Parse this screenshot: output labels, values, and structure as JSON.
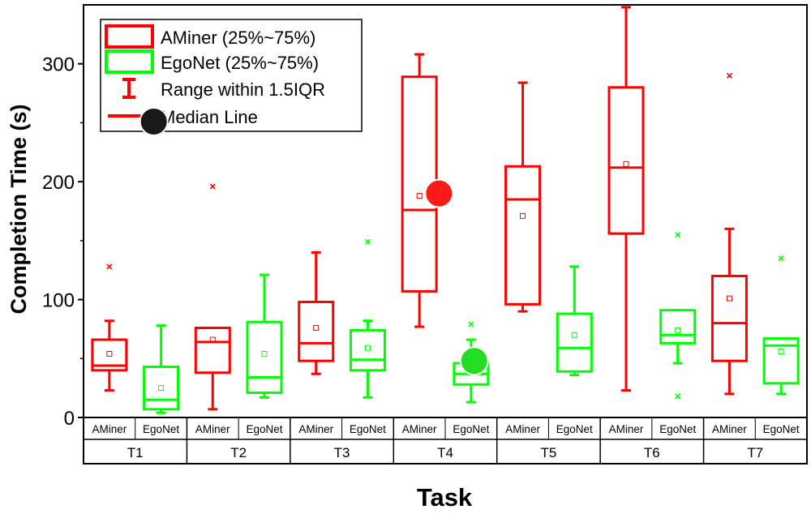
{
  "chart_data": {
    "type": "box",
    "xlabel": "Task",
    "ylabel": "Completion Time (s)",
    "ylim": [
      0,
      350
    ],
    "yticks": [
      0,
      100,
      200,
      300
    ],
    "tasks": [
      "T1",
      "T2",
      "T3",
      "T4",
      "T5",
      "T6",
      "T7"
    ],
    "group_labels": [
      "AMiner",
      "EgoNet"
    ],
    "legend": {
      "placement": "top-left",
      "entries": [
        "AMiner (25%~75%)",
        "EgoNet (25%~75%)",
        "Range within 1.5IQR",
        "Median Line"
      ]
    },
    "colors": {
      "AMiner": "#ff0000",
      "EgoNet": "#00ff00",
      "frame": "#000000"
    },
    "series": [
      {
        "name": "AMiner",
        "boxes": [
          {
            "task": "T1",
            "q1": 40,
            "median": 44,
            "q3": 66,
            "mean": 54,
            "whisker_low": 23,
            "whisker_high": 82,
            "outliers": [
              128
            ]
          },
          {
            "task": "T2",
            "q1": 38,
            "median": 64,
            "q3": 76,
            "mean": 66,
            "whisker_low": 7,
            "whisker_high": 76,
            "outliers": [
              196
            ]
          },
          {
            "task": "T3",
            "q1": 48,
            "median": 63,
            "q3": 98,
            "mean": 76,
            "whisker_low": 37,
            "whisker_high": 140,
            "outliers": []
          },
          {
            "task": "T4",
            "q1": 107,
            "median": 176,
            "q3": 289,
            "mean": 188,
            "whisker_low": 77,
            "whisker_high": 308,
            "outliers": []
          },
          {
            "task": "T5",
            "q1": 96,
            "median": 185,
            "q3": 213,
            "mean": 171,
            "whisker_low": 90,
            "whisker_high": 284,
            "outliers": []
          },
          {
            "task": "T6",
            "q1": 156,
            "median": 212,
            "q3": 280,
            "mean": 215,
            "whisker_low": 23,
            "whisker_high": 348,
            "outliers": []
          },
          {
            "task": "T7",
            "q1": 48,
            "median": 80,
            "q3": 120,
            "mean": 101,
            "whisker_low": 20,
            "whisker_high": 160,
            "outliers": [
              290
            ]
          }
        ]
      },
      {
        "name": "EgoNet",
        "boxes": [
          {
            "task": "T1",
            "q1": 7,
            "median": 15,
            "q3": 43,
            "mean": 25,
            "whisker_low": 4,
            "whisker_high": 78,
            "outliers": []
          },
          {
            "task": "T2",
            "q1": 21,
            "median": 34,
            "q3": 81,
            "mean": 54,
            "whisker_low": 17,
            "whisker_high": 121,
            "outliers": []
          },
          {
            "task": "T3",
            "q1": 40,
            "median": 49,
            "q3": 74,
            "mean": 59,
            "whisker_low": 17,
            "whisker_high": 82,
            "outliers": [
              149
            ]
          },
          {
            "task": "T4",
            "q1": 28,
            "median": 37,
            "q3": 46,
            "mean": 40,
            "whisker_low": 13,
            "whisker_high": 66,
            "outliers": [
              79
            ]
          },
          {
            "task": "T5",
            "q1": 39,
            "median": 59,
            "q3": 88,
            "mean": 70,
            "whisker_low": 36,
            "whisker_high": 128,
            "outliers": []
          },
          {
            "task": "T6",
            "q1": 63,
            "median": 70,
            "q3": 91,
            "mean": 74,
            "whisker_low": 46,
            "whisker_high": 91,
            "outliers": [
              18,
              155
            ]
          },
          {
            "task": "T7",
            "q1": 29,
            "median": 61,
            "q3": 67,
            "mean": 56,
            "whisker_low": 20,
            "whisker_high": 67,
            "outliers": [
              135
            ]
          }
        ]
      }
    ],
    "markers": [
      {
        "name": "black-dot",
        "color": "#1a1a1a",
        "x_task": "T2",
        "offset": -0.82,
        "y": 251
      },
      {
        "name": "red-dot",
        "color": "#ff1a1a",
        "x_task": "T4",
        "offset": -0.06,
        "y": 190
      },
      {
        "name": "green-dot",
        "color": "#22dd22",
        "x_task": "T4",
        "offset": 0.28,
        "y": 48
      }
    ]
  }
}
